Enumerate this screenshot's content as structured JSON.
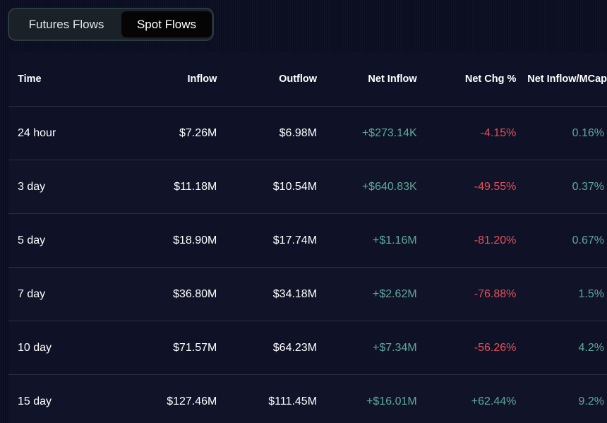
{
  "tabs": [
    {
      "label": "Futures Flows",
      "active": false
    },
    {
      "label": "Spot Flows",
      "active": true
    }
  ],
  "table": {
    "headers": {
      "time": "Time",
      "inflow": "Inflow",
      "outflow": "Outflow",
      "net_inflow": "Net Inflow",
      "net_chg": "Net Chg %",
      "net_mcap": "Net Inflow/MCap"
    },
    "rows": [
      {
        "time": "24 hour",
        "inflow": "$7.26M",
        "outflow": "$6.98M",
        "net_inflow": "+$273.14K",
        "net_chg": "-4.15%",
        "net_mcap": "0.16%"
      },
      {
        "time": "3 day",
        "inflow": "$11.18M",
        "outflow": "$10.54M",
        "net_inflow": "+$640.83K",
        "net_chg": "-49.55%",
        "net_mcap": "0.37%"
      },
      {
        "time": "5 day",
        "inflow": "$18.90M",
        "outflow": "$17.74M",
        "net_inflow": "+$1.16M",
        "net_chg": "-81.20%",
        "net_mcap": "0.67%"
      },
      {
        "time": "7 day",
        "inflow": "$36.80M",
        "outflow": "$34.18M",
        "net_inflow": "+$2.62M",
        "net_chg": "-76.88%",
        "net_mcap": "1.5%"
      },
      {
        "time": "10 day",
        "inflow": "$71.57M",
        "outflow": "$64.23M",
        "net_inflow": "+$7.34M",
        "net_chg": "-56.26%",
        "net_mcap": "4.2%"
      },
      {
        "time": "15 day",
        "inflow": "$127.46M",
        "outflow": "$111.45M",
        "net_inflow": "+$16.01M",
        "net_chg": "+62.44%",
        "net_mcap": "9.2%"
      }
    ]
  },
  "colors": {
    "positive": "#5fa89c",
    "negative": "#e0505c",
    "background": "#0b0d21"
  }
}
